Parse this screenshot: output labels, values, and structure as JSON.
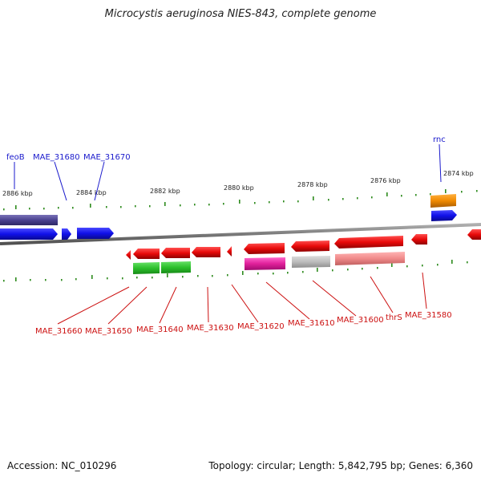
{
  "title": "Microcystis aeruginosa NIES-843, complete genome",
  "footer": {
    "accession": "Accession: NC_010296",
    "summary": "Topology: circular; Length: 5,842,795 bp; Genes: 6,360"
  },
  "colors": {
    "backbone": "#8a8a8a",
    "upper_label": "#1a1acc",
    "lower_label": "#cc1010",
    "tick": "#2e8b1e"
  },
  "ruler_labels": [
    "2886 kbp",
    "2884 kbp",
    "2882 kbp",
    "2880 kbp",
    "2878 kbp",
    "2876 kbp",
    "2874 kbp"
  ],
  "upper_gene_labels": [
    "feoB",
    "MAE_31680",
    "MAE_31670",
    "rnc"
  ],
  "lower_gene_labels": [
    "MAE_31660",
    "MAE_31650",
    "MAE_31640",
    "MAE_31630",
    "MAE_31620",
    "MAE_31610",
    "MAE_31600",
    "thrS",
    "MAE_31580"
  ]
}
